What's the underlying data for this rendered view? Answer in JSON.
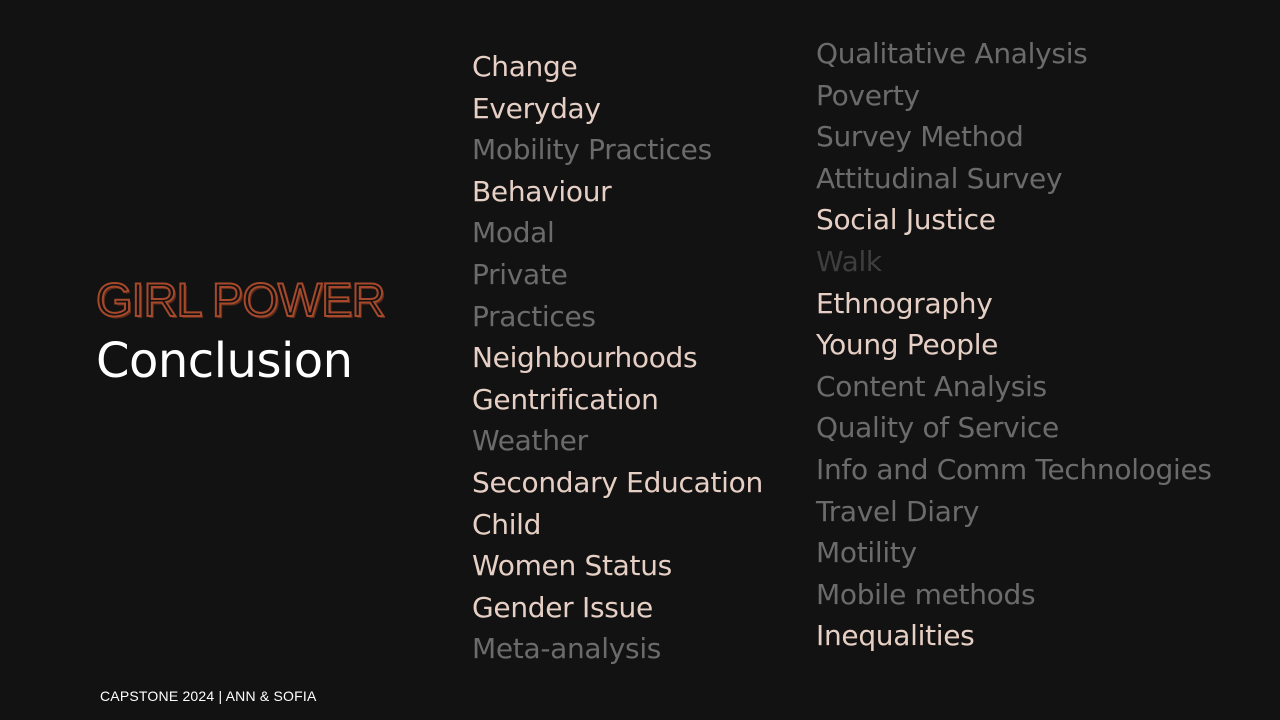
{
  "slide": {
    "title": "GIRL POWER",
    "subtitle": "Conclusion",
    "footer": "CAPSTONE 2024 | ANN & SOFIA"
  },
  "keywords_left": [
    {
      "text": "Change",
      "emphasis": "high"
    },
    {
      "text": "Everyday",
      "emphasis": "high"
    },
    {
      "text": "Mobility Practices",
      "emphasis": "muted"
    },
    {
      "text": "Behaviour",
      "emphasis": "high"
    },
    {
      "text": "Modal",
      "emphasis": "muted"
    },
    {
      "text": "Private",
      "emphasis": "muted"
    },
    {
      "text": "Practices",
      "emphasis": "muted"
    },
    {
      "text": "Neighbourhoods",
      "emphasis": "high"
    },
    {
      "text": "Gentrification",
      "emphasis": "high"
    },
    {
      "text": "Weather",
      "emphasis": "muted"
    },
    {
      "text": "Secondary Education",
      "emphasis": "high"
    },
    {
      "text": "Child",
      "emphasis": "high"
    },
    {
      "text": "Women Status",
      "emphasis": "high"
    },
    {
      "text": "Gender Issue",
      "emphasis": "high"
    },
    {
      "text": "Meta-analysis",
      "emphasis": "muted"
    }
  ],
  "keywords_right": [
    {
      "text": "Qualitative Analysis",
      "emphasis": "muted"
    },
    {
      "text": "Poverty",
      "emphasis": "muted"
    },
    {
      "text": "Survey Method",
      "emphasis": "muted"
    },
    {
      "text": "Attitudinal Survey",
      "emphasis": "muted"
    },
    {
      "text": "Social Justice",
      "emphasis": "high"
    },
    {
      "text": "Walk",
      "emphasis": "faint"
    },
    {
      "text": "Ethnography",
      "emphasis": "high"
    },
    {
      "text": "Young People",
      "emphasis": "high"
    },
    {
      "text": "Content Analysis",
      "emphasis": "muted"
    },
    {
      "text": "Quality of Service",
      "emphasis": "muted"
    },
    {
      "text": "Info and Comm Technologies",
      "emphasis": "muted"
    },
    {
      "text": "Travel Diary",
      "emphasis": "muted"
    },
    {
      "text": "Motility",
      "emphasis": "muted"
    },
    {
      "text": "Mobile methods",
      "emphasis": "muted"
    },
    {
      "text": "Inequalities",
      "emphasis": "high"
    }
  ],
  "colors": {
    "background": "#121212",
    "title_accent": "#a6482a",
    "keyword_high": "#e6cfc4",
    "keyword_muted": "#6b6b6b",
    "keyword_faint": "#3e3e3e",
    "subtitle": "#ffffff"
  }
}
